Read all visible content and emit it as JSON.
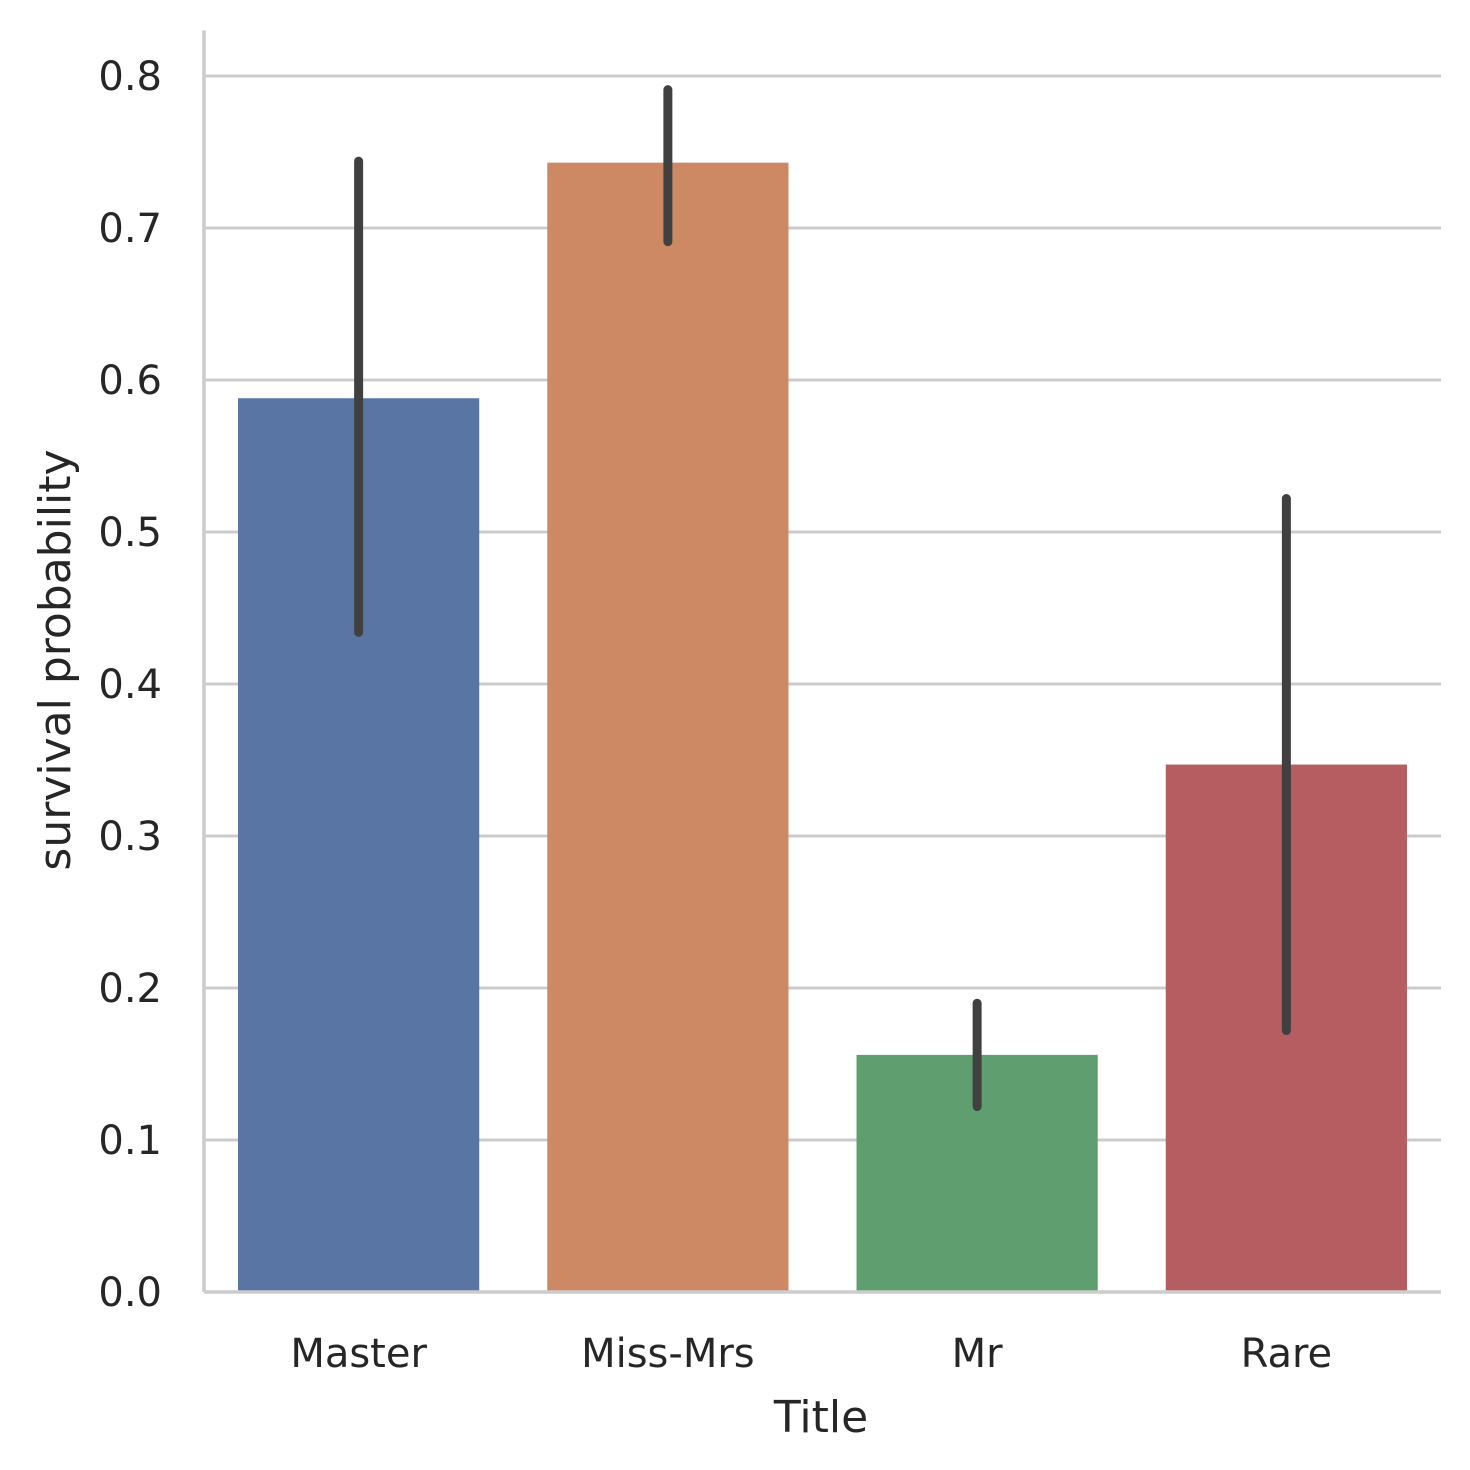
{
  "chart_data": {
    "type": "bar",
    "categories": [
      "Master",
      "Miss-Mrs",
      "Mr",
      "Rare"
    ],
    "values": [
      0.588,
      0.743,
      0.156,
      0.347
    ],
    "error_bars": [
      {
        "low": 0.434,
        "high": 0.744
      },
      {
        "low": 0.691,
        "high": 0.791
      },
      {
        "low": 0.122,
        "high": 0.19
      },
      {
        "low": 0.172,
        "high": 0.522
      }
    ],
    "colors": [
      "#5975a4",
      "#cc8963",
      "#5f9e6e",
      "#b55d60"
    ],
    "xlabel": "Title",
    "ylabel": "survival probability",
    "ylim": [
      0,
      0.83
    ],
    "yticks": [
      "0.0",
      "0.1",
      "0.2",
      "0.3",
      "0.4",
      "0.5",
      "0.6",
      "0.7",
      "0.8"
    ],
    "ytick_values": [
      0,
      0.1,
      0.2,
      0.3,
      0.4,
      0.5,
      0.6,
      0.7,
      0.8
    ],
    "grid": "horizontal"
  }
}
